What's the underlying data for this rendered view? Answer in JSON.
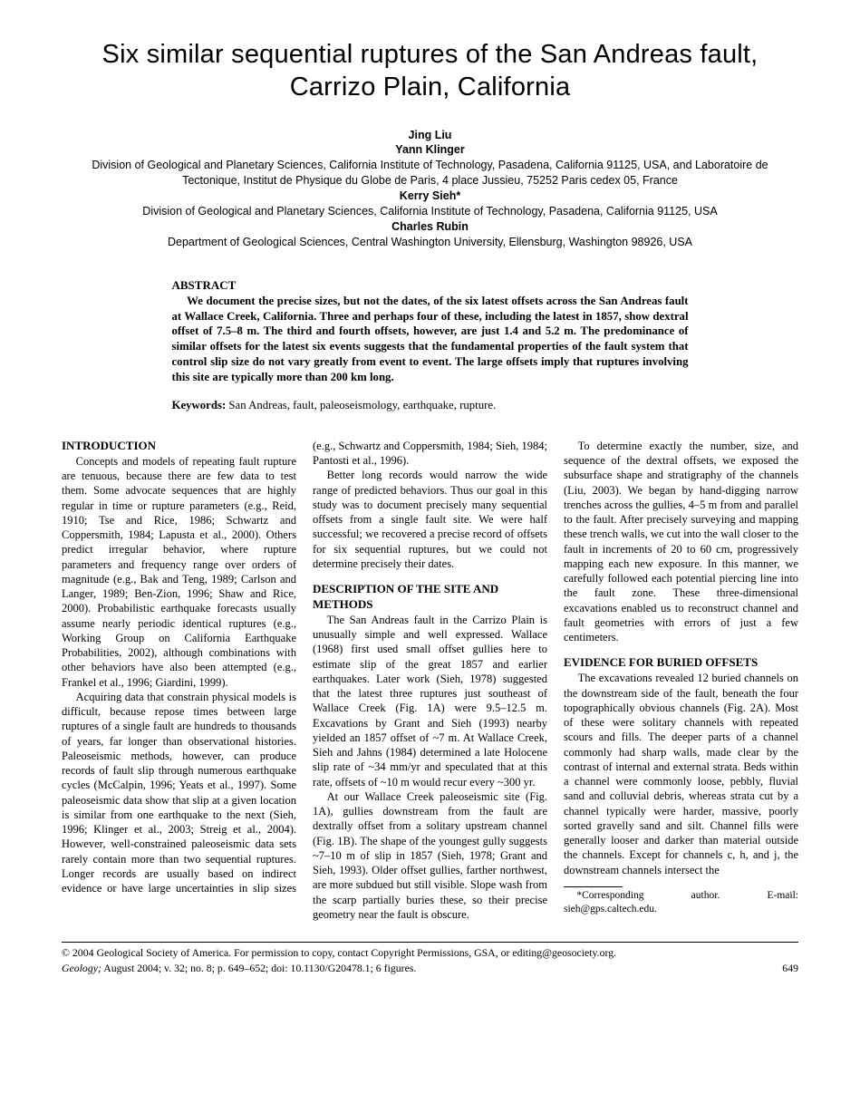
{
  "title": "Six similar sequential ruptures of the San Andreas fault, Carrizo Plain, California",
  "authors": [
    {
      "name": "Jing Liu",
      "affil": ""
    },
    {
      "name": "Yann Klinger",
      "affil": "Division of Geological and Planetary Sciences, California Institute of Technology, Pasadena, California 91125, USA, and Laboratoire de Tectonique, Institut de Physique du Globe de Paris, 4 place Jussieu, 75252 Paris cedex 05, France"
    },
    {
      "name": "Kerry Sieh*",
      "affil": "Division of Geological and Planetary Sciences, California Institute of Technology, Pasadena, California 91125, USA"
    },
    {
      "name": "Charles Rubin",
      "affil": "Department of Geological Sciences, Central Washington University, Ellensburg, Washington 98926, USA"
    }
  ],
  "abstract": {
    "heading": "ABSTRACT",
    "text": "We document the precise sizes, but not the dates, of the six latest offsets across the San Andreas fault at Wallace Creek, California. Three and perhaps four of these, including the latest in 1857, show dextral offset of 7.5–8 m. The third and fourth offsets, however, are just 1.4 and 5.2 m. The predominance of similar offsets for the latest six events suggests that the fundamental properties of the fault system that control slip size do not vary greatly from event to event. The large offsets imply that ruptures involving this site are typically more than 200 km long."
  },
  "keywords": {
    "label": "Keywords:",
    "text": " San Andreas, fault, paleoseismology, earthquake, rupture."
  },
  "sections": {
    "intro_heading": "INTRODUCTION",
    "intro_p1": "Concepts and models of repeating fault rupture are tenuous, because there are few data to test them. Some advocate sequences that are highly regular in time or rupture parameters (e.g., Reid, 1910; Tse and Rice, 1986; Schwartz and Coppersmith, 1984; Lapusta et al., 2000). Others predict irregular behavior, where rupture parameters and frequency range over orders of magnitude (e.g., Bak and Teng, 1989; Carlson and Langer, 1989; Ben-Zion, 1996; Shaw and Rice, 2000). Probabilistic earthquake forecasts usually assume nearly periodic identical ruptures (e.g., Working Group on California Earthquake Probabilities, 2002), although combinations with other behaviors have also been attempted (e.g., Frankel et al., 1996; Giardini, 1999).",
    "intro_p2": "Acquiring data that constrain physical models is difficult, because repose times between large ruptures of a single fault are hundreds to thousands of years, far longer than observational histories. Paleoseismic methods, however, can produce records of fault slip through numerous earthquake cycles (McCalpin, 1996; Yeats et al., 1997). Some paleoseismic data show that slip at a given location is similar from one earthquake to the next (Sieh, 1996; Klinger et al., 2003; Streig et al., 2004). However, well-constrained paleoseismic data sets rarely contain more than two sequential ruptures. Longer records are usually based on indirect evidence or have large uncertainties in slip sizes (e.g., Schwartz and Coppersmith, 1984; Sieh, 1984; Pantosti et al., 1996).",
    "intro_p3": "Better long records would narrow the wide range of predicted behaviors. Thus our goal in this study was to document precisely many sequential offsets from a single fault site. We were half successful; we recovered a precise record of offsets for six sequential ruptures, but we could not determine precisely their dates.",
    "site_heading": "DESCRIPTION OF THE SITE AND METHODS",
    "site_p1": "The San Andreas fault in the Carrizo Plain is unusually simple and well expressed. Wallace (1968) first used small offset gullies here to estimate slip of the great 1857 and earlier earthquakes. Later work (Sieh, 1978) suggested that the latest three ruptures just southeast of Wallace Creek (Fig. 1A) were 9.5–12.5 m. Excavations by Grant and Sieh (1993) nearby yielded an 1857 offset of ~7 m. At Wallace Creek, Sieh and Jahns (1984) determined a late Holocene slip rate of ~34 mm/yr and speculated that at this rate, offsets of ~10 m would recur every ~300 yr.",
    "site_p2": "At our Wallace Creek paleoseismic site (Fig. 1A), gullies downstream from the fault are dextrally offset from a solitary upstream channel (Fig. 1B). The shape of the youngest gully suggests ~7–10 m of slip in 1857 (Sieh, 1978; Grant and Sieh, 1993). Older offset gullies, farther northwest, are more subdued but still visible. Slope wash from the scarp partially buries these, so their precise geometry near the fault is obscure.",
    "site_p3": "To determine exactly the number, size, and sequence of the dextral offsets, we exposed the subsurface shape and stratigraphy of the channels (Liu, 2003). We began by hand-digging narrow trenches across the gullies, 4–5 m from and parallel to the fault. After precisely surveying and mapping these trench walls, we cut into the wall closer to the fault in increments of 20 to 60 cm, progressively mapping each new exposure. In this manner, we carefully followed each potential piercing line into the fault zone. These three-dimensional excavations enabled us to reconstruct channel and fault geometries with errors of just a few centimeters.",
    "evidence_heading": "EVIDENCE FOR BURIED OFFSETS",
    "evidence_p1": "The excavations revealed 12 buried channels on the downstream side of the fault, beneath the four topographically obvious channels (Fig. 2A). Most of these were solitary channels with repeated scours and fills. The deeper parts of a channel commonly had sharp walls, made clear by the contrast of internal and external strata. Beds within a channel were commonly loose, pebbly, fluvial sand and colluvial debris, whereas strata cut by a channel typically were harder, massive, poorly sorted gravelly sand and silt. Channel fills were generally looser and darker than material outside the channels. Except for channels c, h, and j, the downstream channels intersect the"
  },
  "footnote": "*Corresponding author. E-mail: sieh@gps.caltech.edu.",
  "copyright": "© 2004 Geological Society of America. For permission to copy, contact Copyright Permissions, GSA, or editing@geosociety.org.",
  "journal": {
    "italic": "Geology;",
    "rest": " August 2004; v. 32; no. 8; p. 649–652; doi: 10.1130/G20478.1; 6 figures.",
    "page": "649"
  }
}
